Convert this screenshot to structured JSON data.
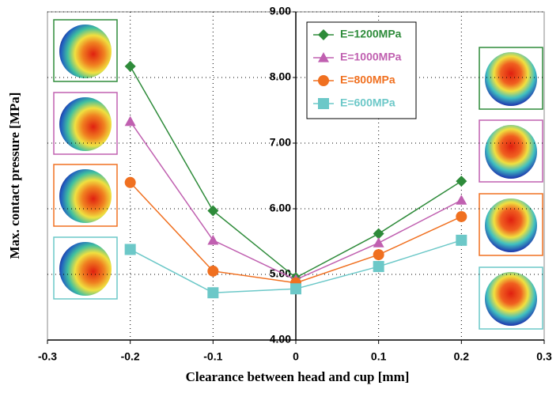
{
  "chart_data": {
    "type": "line",
    "xlabel": "Clearance between head and cup [mm]",
    "ylabel": "Max. contact pressure [MPa]",
    "x": [
      -0.2,
      -0.1,
      0,
      0.1,
      0.2
    ],
    "series": [
      {
        "name": "E=1200MPa",
        "color": "#2e8b3a",
        "marker": "diamond",
        "values": [
          8.17,
          5.97,
          4.95,
          5.62,
          6.42
        ]
      },
      {
        "name": "E=1000MPa",
        "color": "#c060b0",
        "marker": "triangle",
        "values": [
          7.33,
          5.52,
          4.92,
          5.48,
          6.13
        ]
      },
      {
        "name": "E=800MPa",
        "color": "#f07020",
        "marker": "circle",
        "values": [
          6.4,
          5.05,
          4.87,
          5.3,
          5.88
        ]
      },
      {
        "name": "E=600MPa",
        "color": "#6cc8c8",
        "marker": "square",
        "values": [
          5.38,
          4.72,
          4.78,
          5.12,
          5.52
        ]
      }
    ],
    "xlim": [
      -0.3,
      0.3
    ],
    "xticks": [
      -0.3,
      -0.2,
      -0.1,
      0,
      0.1,
      0.2,
      0.3
    ],
    "ylim": [
      4,
      9
    ],
    "yticks": [
      {
        "value": 4,
        "label": "4.00"
      },
      {
        "value": 5,
        "label": "5.00"
      },
      {
        "value": 6,
        "label": "6.00"
      },
      {
        "value": 7,
        "label": "7.00"
      },
      {
        "value": 8,
        "label": "8.00"
      },
      {
        "value": 9,
        "label": "9.00"
      }
    ],
    "grid": true,
    "legend": "top"
  }
}
